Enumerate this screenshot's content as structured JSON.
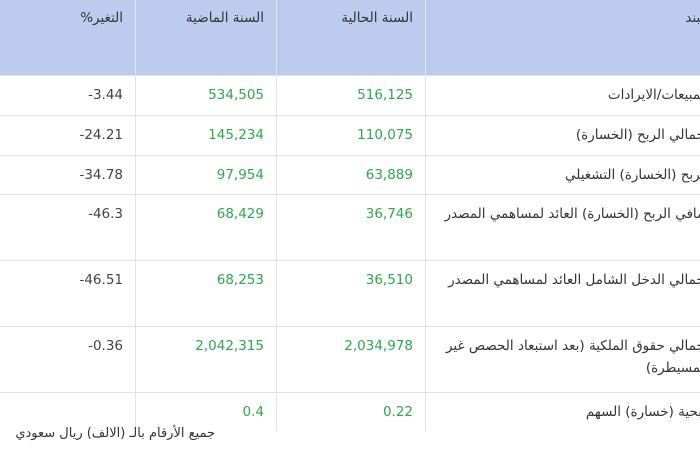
{
  "table": {
    "header": [
      "البند",
      "السنة الحالية",
      "السنة الماضية",
      "التغير%"
    ],
    "rows": [
      [
        "المبيعات/الايرادات",
        "516,125",
        "534,505",
        "3.44-"
      ],
      [
        "إجمالي الربح (الخسارة)",
        "110,075",
        "145,234",
        "24.21-"
      ],
      [
        "الربح (الخسارة) التشغيلي",
        "63,889",
        "97,954",
        "34.78-"
      ],
      [
        "صافي الربح (الخسارة) العائد لمساهمي المصدر",
        "36,746",
        "68,429",
        "46.3-"
      ],
      [
        "إجمالي الدخل الشامل العائد لمساهمي المصدر",
        "36,510",
        "68,253",
        "46.51-"
      ],
      [
        "إجمالي حقوق الملكية (بعد استبعاد الحصص غير المسيطرة)",
        "2,034,978",
        "2,042,315",
        "0.36-"
      ],
      [
        "ربحية (خسارة) السهم",
        "0.22",
        "0.4",
        ""
      ]
    ],
    "note": "جميع الأرقام بالـ (الالف) ريال سعودي"
  }
}
